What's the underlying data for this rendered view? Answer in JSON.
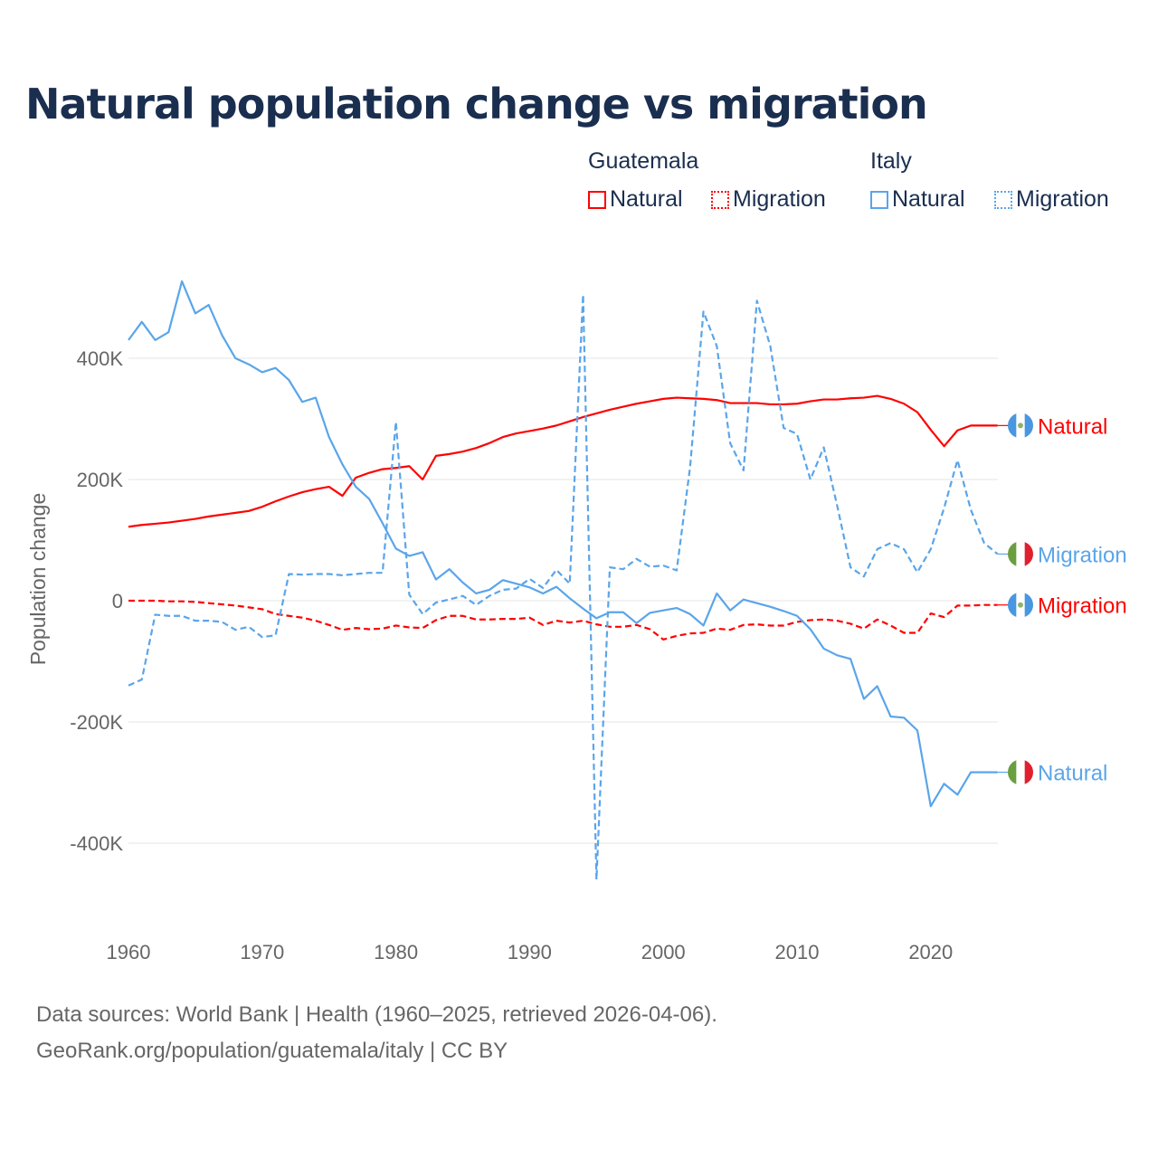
{
  "title": "Natural population change vs migration",
  "legend": {
    "groups": [
      {
        "name": "Guatemala",
        "items": [
          {
            "label": "Natural",
            "style": "solid"
          },
          {
            "label": "Migration",
            "style": "dotted"
          }
        ],
        "color": "#ff0000"
      },
      {
        "name": "Italy",
        "items": [
          {
            "label": "Natural",
            "style": "solid"
          },
          {
            "label": "Migration",
            "style": "dotted"
          }
        ],
        "color": "#5aa5ea"
      }
    ]
  },
  "footer": {
    "line1": "Data sources: World Bank | Health (1960–2025, retrieved 2026-04-06).",
    "line2": "GeoRank.org/population/guatemala/italy | CC BY"
  },
  "chart_data": {
    "type": "line",
    "title": "Natural population change vs migration",
    "xlabel": "",
    "ylabel": "Population change",
    "xlim": [
      1960,
      2025
    ],
    "ylim": [
      -480000,
      560000
    ],
    "x_ticks": [
      1960,
      1970,
      1980,
      1990,
      2000,
      2010,
      2020
    ],
    "y_ticks": [
      {
        "v": 400000,
        "label": "400K"
      },
      {
        "v": 200000,
        "label": "200K"
      },
      {
        "v": 0,
        "label": "0"
      },
      {
        "v": -200000,
        "label": "-200K"
      },
      {
        "v": -400000,
        "label": "-400K"
      }
    ],
    "grid": true,
    "x_start": 1960,
    "series": [
      {
        "name": "Guatemala Natural",
        "end_label": "Natural",
        "flag": "guatemala",
        "color": "#ff0000",
        "dashed": false,
        "values_k": [
          122,
          125,
          127,
          129,
          132,
          135,
          139,
          142,
          145,
          148,
          155,
          164,
          172,
          179,
          184,
          188,
          173,
          203,
          211,
          217,
          219,
          222,
          200,
          239,
          242,
          246,
          252,
          260,
          270,
          276,
          280,
          284,
          289,
          296,
          303,
          309,
          315,
          320,
          325,
          329,
          333,
          335,
          334,
          333,
          331,
          326,
          326,
          326,
          324,
          324,
          325,
          329,
          332,
          332,
          334,
          335,
          338,
          333,
          325,
          311,
          282,
          255,
          281,
          289,
          289,
          289
        ]
      },
      {
        "name": "Guatemala Migration",
        "end_label": "Migration",
        "flag": "guatemala",
        "color": "#ff0000",
        "dashed": true,
        "values_k": [
          0,
          0,
          0,
          -1,
          -1,
          -2,
          -4,
          -6,
          -8,
          -11,
          -14,
          -22,
          -25,
          -28,
          -33,
          -40,
          -48,
          -45,
          -47,
          -46,
          -41,
          -44,
          -45,
          -32,
          -25,
          -25,
          -31,
          -31,
          -30,
          -30,
          -28,
          -40,
          -33,
          -36,
          -33,
          -39,
          -43,
          -43,
          -40,
          -47,
          -64,
          -58,
          -54,
          -53,
          -46,
          -48,
          -40,
          -39,
          -41,
          -41,
          -35,
          -32,
          -31,
          -33,
          -38,
          -46,
          -31,
          -41,
          -53,
          -53,
          -21,
          -27,
          -8,
          -8,
          -7,
          -7
        ]
      },
      {
        "name": "Italy Natural",
        "end_label": "Natural",
        "flag": "italy",
        "color": "#5aa5ea",
        "dashed": false,
        "values_k": [
          430,
          460,
          430,
          443,
          527,
          474,
          488,
          438,
          400,
          390,
          377,
          384,
          364,
          328,
          335,
          270,
          225,
          188,
          168,
          128,
          86,
          74,
          80,
          35,
          52,
          30,
          12,
          18,
          34,
          28,
          22,
          12,
          23,
          4,
          -13,
          -29,
          -19,
          -19,
          -37,
          -20,
          -16,
          -12,
          -22,
          -41,
          12,
          -16,
          2,
          -4,
          -10,
          -17,
          -25,
          -47,
          -79,
          -90,
          -96,
          -162,
          -141,
          -191,
          -193,
          -214,
          -339,
          -302,
          -320,
          -283,
          -283,
          -283
        ]
      },
      {
        "name": "Italy Migration",
        "end_label": "Migration",
        "flag": "italy",
        "color": "#5aa5ea",
        "dashed": true,
        "values_k": [
          -140,
          -130,
          -23,
          -25,
          -25,
          -33,
          -33,
          -35,
          -48,
          -43,
          -60,
          -57,
          44,
          43,
          44,
          44,
          42,
          44,
          46,
          46,
          295,
          10,
          -22,
          -3,
          2,
          8,
          -7,
          8,
          18,
          20,
          36,
          21,
          51,
          28,
          505,
          -460,
          55,
          52,
          69,
          56,
          58,
          50,
          220,
          477,
          420,
          260,
          215,
          495,
          420,
          285,
          275,
          200,
          253,
          157,
          55,
          40,
          85,
          95,
          85,
          47,
          85,
          153,
          232,
          150,
          95,
          77
        ]
      }
    ]
  }
}
